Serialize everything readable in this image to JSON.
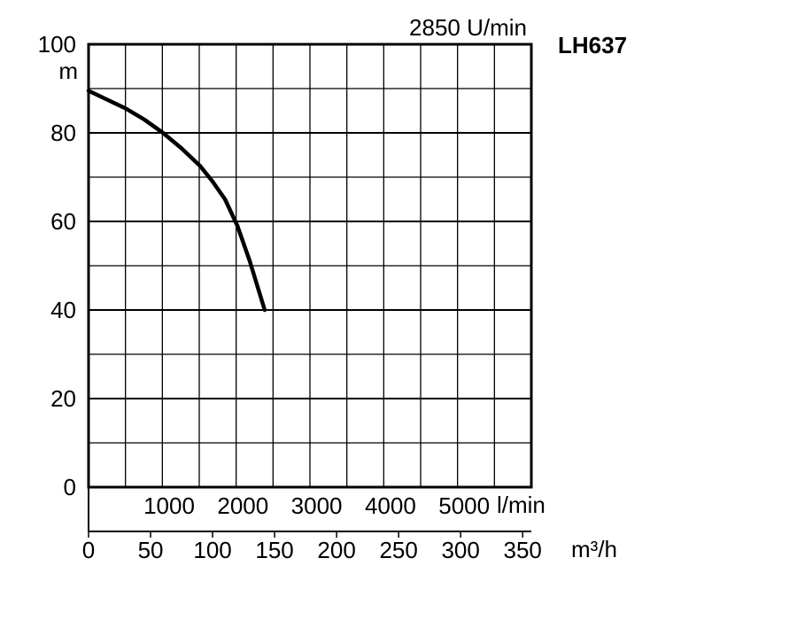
{
  "chart_data": {
    "type": "line",
    "model": "LH637",
    "speed": "2850 U/min",
    "ylabel": "m",
    "ylim": [
      0,
      100
    ],
    "y_ticks": [
      "0",
      "20",
      "40",
      "60",
      "80",
      "100"
    ],
    "x_lpm_ticks": [
      "1000",
      "2000",
      "3000",
      "4000",
      "5000"
    ],
    "x_lpm_unit": "l/min",
    "x_m3h_ticks": [
      "0",
      "50",
      "100",
      "150",
      "200",
      "250",
      "300",
      "350"
    ],
    "x_m3h_unit": "m³/h",
    "xlim_m3h": [
      0,
      357
    ],
    "grid": true,
    "series": [
      {
        "x": [
          0,
          15,
          30,
          45,
          60,
          75,
          90,
          100,
          110,
          120,
          130,
          142
        ],
        "y": [
          89.5,
          87.5,
          85.5,
          83,
          80,
          76.5,
          72.5,
          69,
          65,
          59,
          51,
          40
        ]
      }
    ]
  }
}
